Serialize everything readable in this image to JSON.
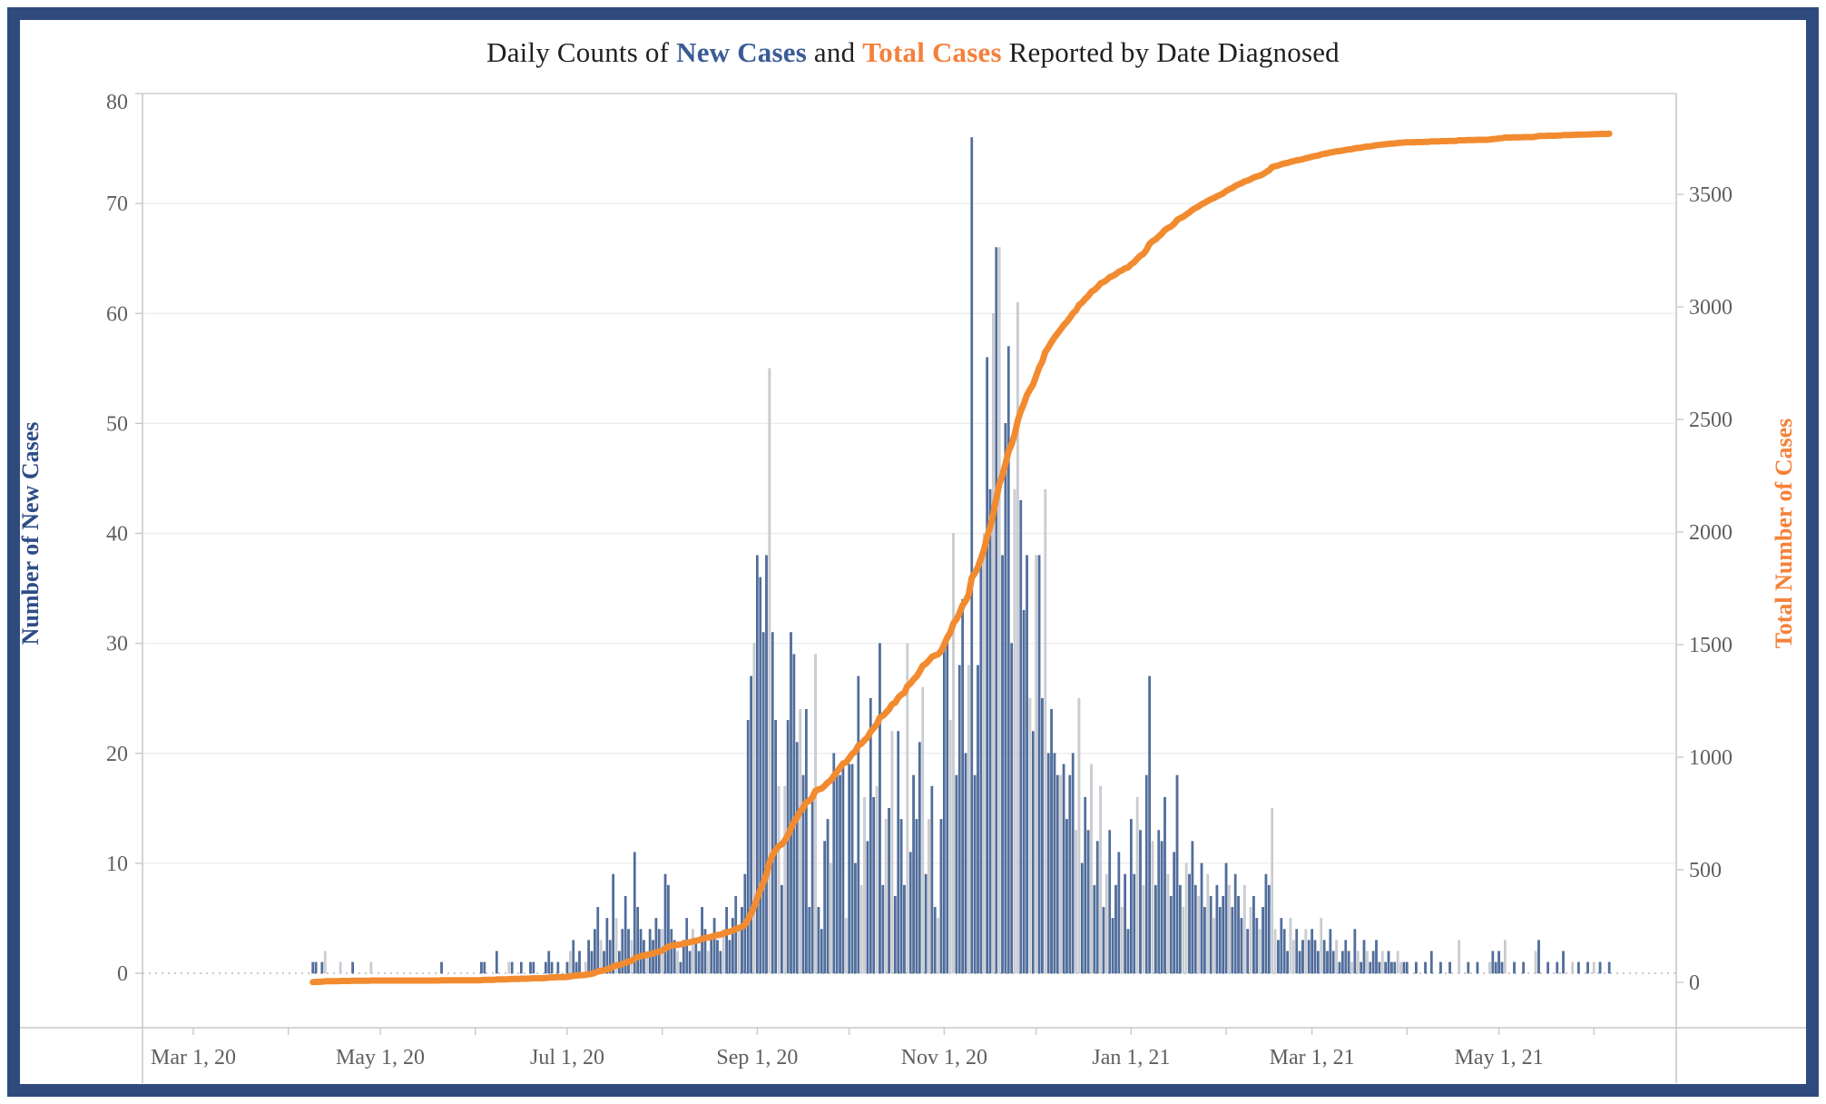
{
  "title": {
    "prefix": "Daily Counts of ",
    "new_cases": "New Cases",
    "conjunction": " and ",
    "total_cases": "Total Cases",
    "suffix": " Reported by Date Diagnosed"
  },
  "chart_data": {
    "type": "bar+line-dual-axis",
    "title": "Daily Counts of New Cases and Total Cases Reported by Date Diagnosed",
    "grid": "horizontal-only",
    "left_axis": {
      "label": "Number of New Cases",
      "min": 0,
      "max": 80,
      "ticks": [
        0,
        10,
        20,
        30,
        40,
        50,
        60,
        70,
        80
      ],
      "label_color": "#2e4d87",
      "zero_line_style": "dotted"
    },
    "right_axis": {
      "label": "Total Number of Cases",
      "min": 0,
      "ticks": [
        0,
        500,
        1000,
        1500,
        2000,
        2500,
        3000,
        3500
      ],
      "label_color": "#f5813a"
    },
    "x_axis": {
      "epoch": "2020-03-01",
      "ticks": [
        {
          "day": 0,
          "label": "Mar 1, 20"
        },
        {
          "day": 31,
          "label": ""
        },
        {
          "day": 61,
          "label": "May 1, 20"
        },
        {
          "day": 92,
          "label": ""
        },
        {
          "day": 122,
          "label": "Jul 1, 20"
        },
        {
          "day": 153,
          "label": ""
        },
        {
          "day": 184,
          "label": "Sep 1, 20"
        },
        {
          "day": 214,
          "label": ""
        },
        {
          "day": 245,
          "label": "Nov 1, 20"
        },
        {
          "day": 275,
          "label": ""
        },
        {
          "day": 306,
          "label": "Jan 1, 21"
        },
        {
          "day": 337,
          "label": ""
        },
        {
          "day": 365,
          "label": "Mar 1, 21"
        },
        {
          "day": 396,
          "label": ""
        },
        {
          "day": 426,
          "label": "May 1, 21"
        },
        {
          "day": 457,
          "label": ""
        }
      ],
      "tick_label_color": "#5f5f5f"
    },
    "series": {
      "bars": {
        "name": "New Cases",
        "start_date": "2020-04-09",
        "start_day_offset": 39,
        "unit": "cases per day",
        "color": "#54719f",
        "muted_color": "#cdcfd4",
        "values": [
          1,
          1,
          0,
          1,
          2,
          0,
          0,
          0,
          0,
          1,
          0,
          0,
          0,
          1,
          0,
          0,
          0,
          0,
          0,
          1,
          0,
          0,
          0,
          0,
          0,
          0,
          0,
          0,
          0,
          0,
          0,
          0,
          0,
          0,
          0,
          0,
          0,
          0,
          0,
          0,
          0,
          0,
          1,
          0,
          0,
          0,
          0,
          0,
          0,
          0,
          0,
          0,
          0,
          0,
          0,
          1,
          1,
          0,
          0,
          0,
          2,
          0,
          0,
          0,
          1,
          1,
          0,
          0,
          1,
          0,
          0,
          1,
          1,
          0,
          0,
          0,
          1,
          2,
          1,
          0,
          1,
          0,
          0,
          1,
          2,
          3,
          1,
          2,
          0,
          1,
          3,
          2,
          4,
          6,
          3,
          2,
          5,
          3,
          9,
          5,
          2,
          4,
          7,
          4,
          3,
          11,
          6,
          4,
          3,
          2,
          4,
          3,
          5,
          4,
          4,
          9,
          8,
          4,
          3,
          2,
          1,
          3,
          5,
          2,
          4,
          3,
          2,
          6,
          4,
          2,
          3,
          5,
          3,
          2,
          4,
          6,
          3,
          5,
          7,
          4,
          6,
          9,
          23,
          27,
          30,
          38,
          36,
          31,
          38,
          55,
          31,
          23,
          17,
          8,
          17,
          23,
          31,
          29,
          21,
          24,
          18,
          24,
          6,
          16,
          29,
          6,
          4,
          12,
          14,
          10,
          20,
          18,
          18,
          19,
          5,
          19,
          19,
          10,
          27,
          8,
          16,
          12,
          25,
          16,
          17,
          30,
          8,
          14,
          15,
          22,
          7,
          22,
          14,
          8,
          30,
          11,
          18,
          14,
          21,
          26,
          9,
          14,
          17,
          6,
          5,
          14,
          30,
          30,
          23,
          40,
          18,
          28,
          34,
          20,
          28,
          76,
          18,
          28,
          38,
          40,
          56,
          44,
          60,
          66,
          66,
          38,
          50,
          57,
          30,
          44,
          61,
          43,
          33,
          38,
          25,
          22,
          38,
          38,
          25,
          44,
          20,
          24,
          20,
          18,
          18,
          19,
          14,
          18,
          20,
          13,
          25,
          10,
          16,
          13,
          19,
          8,
          12,
          17,
          6,
          9,
          13,
          5,
          8,
          11,
          6,
          9,
          4,
          14,
          9,
          16,
          13,
          8,
          18,
          27,
          12,
          8,
          13,
          12,
          16,
          9,
          7,
          11,
          18,
          8,
          6,
          10,
          9,
          12,
          8,
          7,
          10,
          6,
          9,
          7,
          5,
          8,
          6,
          7,
          10,
          8,
          6,
          9,
          7,
          5,
          8,
          4,
          6,
          7,
          5,
          4,
          6,
          9,
          8,
          15,
          4,
          3,
          5,
          4,
          2,
          5,
          3,
          4,
          2,
          3,
          4,
          3,
          4,
          3,
          2,
          5,
          3,
          2,
          4,
          2,
          3,
          1,
          2,
          3,
          2,
          1,
          4,
          2,
          1,
          3,
          2,
          1,
          2,
          3,
          1,
          2,
          1,
          2,
          1,
          1,
          2,
          1,
          1,
          1,
          0,
          0,
          1,
          0,
          0,
          1,
          0,
          2,
          0,
          0,
          1,
          0,
          0,
          1,
          0,
          0,
          3,
          0,
          0,
          1,
          0,
          0,
          1,
          0,
          0,
          0,
          1,
          2,
          1,
          2,
          1,
          3,
          0,
          0,
          1,
          0,
          0,
          1,
          0,
          0,
          0,
          2,
          3,
          0,
          0,
          1,
          0,
          0,
          1,
          0,
          2,
          0,
          0,
          1,
          0,
          1,
          0,
          0,
          1,
          0,
          1,
          0,
          1,
          0,
          0,
          1
        ],
        "muted_indices": [
          4,
          9,
          14,
          19,
          24,
          29,
          34,
          39,
          44,
          49,
          54,
          59,
          64,
          69,
          74,
          79,
          84,
          89,
          94,
          99,
          104,
          109,
          114,
          119,
          124,
          129,
          134,
          139,
          144,
          149,
          154,
          159,
          164,
          169,
          174,
          179,
          184,
          189,
          194,
          199,
          204,
          209,
          214,
          219,
          224,
          229,
          234,
          239,
          244,
          249,
          254,
          259,
          264,
          269,
          274,
          279,
          284,
          289,
          294,
          299,
          304,
          309,
          314,
          319,
          324,
          329,
          334,
          339,
          344,
          349,
          354,
          359,
          364,
          369,
          374,
          379,
          384,
          389,
          394,
          399,
          404,
          409,
          414,
          419,
          152,
          180,
          187,
          201,
          208,
          222,
          230,
          236,
          250,
          257,
          271,
          285,
          292,
          306,
          313,
          320,
          341,
          355,
          390,
          397,
          411,
          418
        ]
      },
      "line": {
        "name": "Total Cases",
        "derivation": "cumulative sum of daily new cases",
        "color": "#f28b30",
        "final_cumulative_total_approx": 3768
      }
    }
  }
}
